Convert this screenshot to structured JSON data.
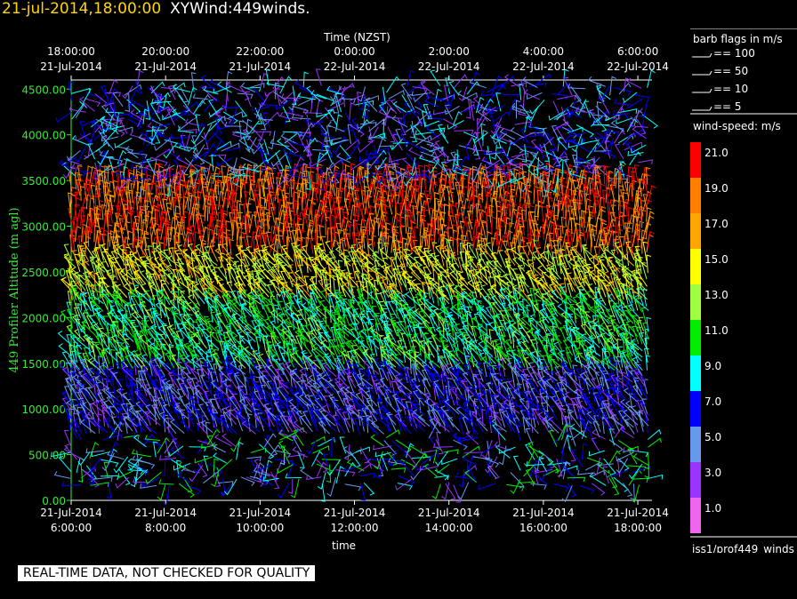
{
  "header": {
    "datetime": "21-jul-2014,18:00:00",
    "plot_name": "XYWind:449winds."
  },
  "chart_data": {
    "type": "wind-barb time-height plot",
    "top_axis": {
      "title": "Time (NZST)",
      "ticks": [
        {
          "time": "18:00:00",
          "date": "21-Jul-2014"
        },
        {
          "time": "20:00:00",
          "date": "21-Jul-2014"
        },
        {
          "time": "22:00:00",
          "date": "21-Jul-2014"
        },
        {
          "time": "0:00:00",
          "date": "22-Jul-2014"
        },
        {
          "time": "2:00:00",
          "date": "22-Jul-2014"
        },
        {
          "time": "4:00:00",
          "date": "22-Jul-2014"
        },
        {
          "time": "6:00:00",
          "date": "22-Jul-2014"
        }
      ]
    },
    "bottom_axis": {
      "title": "time",
      "ticks": [
        {
          "date": "21-Jul-2014",
          "time": "6:00:00"
        },
        {
          "date": "21-Jul-2014",
          "time": "8:00:00"
        },
        {
          "date": "21-Jul-2014",
          "time": "10:00:00"
        },
        {
          "date": "21-Jul-2014",
          "time": "12:00:00"
        },
        {
          "date": "21-Jul-2014",
          "time": "14:00:00"
        },
        {
          "date": "21-Jul-2014",
          "time": "16:00:00"
        },
        {
          "date": "21-Jul-2014",
          "time": "18:00:00"
        }
      ]
    },
    "y_axis": {
      "title": "449 Profiler Altitude (m agl)",
      "ticks": [
        "0.00",
        "500.00",
        "1000.00",
        "1500.00",
        "2000.00",
        "2500.00",
        "3000.00",
        "3500.00",
        "4000.00",
        "4500.00"
      ],
      "range": [
        0,
        4600
      ]
    },
    "x_range_hours": [
      6,
      18.3
    ],
    "legend": {
      "barb_title": "barb flags in m/s",
      "barbs": [
        "== 100",
        "== 50",
        "== 10",
        "== 5"
      ],
      "speed_title": "wind-speed: m/s",
      "levels": [
        {
          "label": "21.0",
          "color": "#ff0000"
        },
        {
          "label": "19.0",
          "color": "#ff8000"
        },
        {
          "label": "17.0",
          "color": "#ffa500"
        },
        {
          "label": "15.0",
          "color": "#ffff00"
        },
        {
          "label": "13.0",
          "color": "#a0ff40"
        },
        {
          "label": "11.0",
          "color": "#00ee00"
        },
        {
          "label": "9.0",
          "color": "#00ffff"
        },
        {
          "label": "7.0",
          "color": "#0000ff"
        },
        {
          "label": "5.0",
          "color": "#6699ee"
        },
        {
          "label": "3.0",
          "color": "#9933ff"
        },
        {
          "label": "1.0",
          "color": "#ee66ee"
        }
      ],
      "source": "iss1/prof449_winds"
    },
    "wind_speed_by_altitude_note": "Strongest winds (~19-21 m/s) near 2700-3300 m, ~9-13 m/s near 1500-2500 m, ~3-7 m/s below 1500 m; sparse lighter winds above 3500 m."
  },
  "footer": {
    "quality_note": "REAL-TIME DATA, NOT CHECKED FOR QUALITY"
  }
}
